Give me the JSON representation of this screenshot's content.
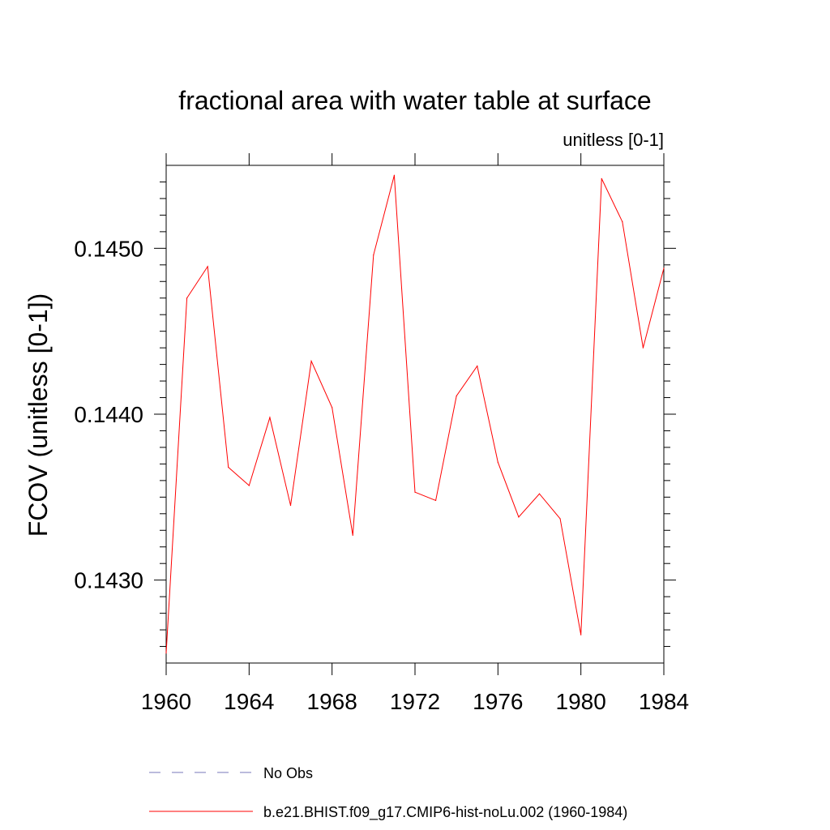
{
  "chart_data": {
    "type": "line",
    "title": "fractional area with water table at surface",
    "subtitle": "unitless [0-1]",
    "ylabel": "FCOV  (unitless [0-1])",
    "xlabel": "",
    "xlim": [
      1960,
      1984
    ],
    "ylim": [
      0.1425,
      0.1455
    ],
    "x_major_ticks": [
      1960,
      1964,
      1968,
      1972,
      1976,
      1980,
      1984
    ],
    "x_tick_labels": [
      "1960",
      "1964",
      "1968",
      "1972",
      "1976",
      "1980",
      "1984"
    ],
    "y_major_ticks": [
      0.143,
      0.144,
      0.145
    ],
    "y_tick_labels": [
      "0.1430",
      "0.1440",
      "0.1450"
    ],
    "grid": false,
    "legend_position": "bottom",
    "legend": [
      {
        "label": "No Obs",
        "color": "#7777bb",
        "dash": "dashed"
      },
      {
        "label": "b.e21.BHIST.f09_g17.CMIP6-hist-noLu.002 (1960-1984)",
        "color": "#ff0000",
        "dash": "solid"
      }
    ],
    "series": [
      {
        "name": "b.e21.BHIST.f09_g17.CMIP6-hist-noLu.002 (1960-1984)",
        "color": "#ff0000",
        "x": [
          1960,
          1961,
          1962,
          1963,
          1964,
          1965,
          1966,
          1967,
          1968,
          1969,
          1970,
          1971,
          1972,
          1973,
          1974,
          1975,
          1976,
          1977,
          1978,
          1979,
          1980,
          1981,
          1982,
          1983,
          1984
        ],
        "values": [
          0.14256,
          0.1447,
          0.14489,
          0.14368,
          0.14357,
          0.14398,
          0.14345,
          0.14432,
          0.14404,
          0.14327,
          0.14496,
          0.14544,
          0.14353,
          0.14348,
          0.14411,
          0.14429,
          0.14371,
          0.14338,
          0.14352,
          0.14337,
          0.14267,
          0.14542,
          0.14516,
          0.1444,
          0.14488
        ]
      }
    ]
  }
}
